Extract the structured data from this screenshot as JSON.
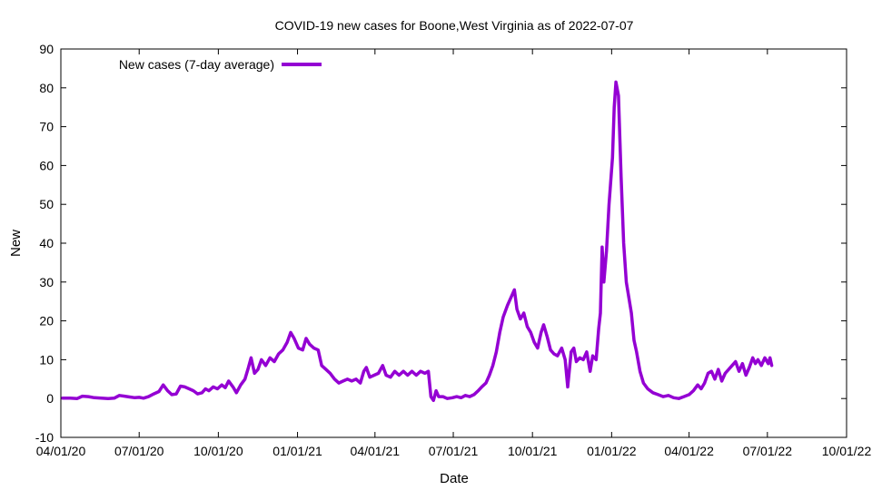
{
  "chart_data": {
    "type": "line",
    "title": "COVID-19 new cases for Boone,West Virginia as of 2022-07-07",
    "xlabel": "Date",
    "ylabel": "New",
    "xlim": [
      "2020-04-01",
      "2022-10-01"
    ],
    "ylim": [
      -10,
      90
    ],
    "xticks": [
      "04/01/20",
      "07/01/20",
      "10/01/20",
      "01/01/21",
      "04/01/21",
      "07/01/21",
      "10/01/21",
      "01/01/22",
      "04/01/22",
      "07/01/22",
      "10/01/22"
    ],
    "xtick_dates": [
      "2020-04-01",
      "2020-07-01",
      "2020-10-01",
      "2021-01-01",
      "2021-04-01",
      "2021-07-01",
      "2021-10-01",
      "2022-01-01",
      "2022-04-01",
      "2022-07-01",
      "2022-10-01"
    ],
    "yticks": [
      -10,
      0,
      10,
      20,
      30,
      40,
      50,
      60,
      70,
      80,
      90
    ],
    "grid": false,
    "legend_position": "top-left",
    "series": [
      {
        "name": "New cases (7-day average)",
        "color": "#9400d3",
        "points": [
          [
            "2020-04-03",
            0.1
          ],
          [
            "2020-04-12",
            0.1
          ],
          [
            "2020-04-20",
            0.0
          ],
          [
            "2020-04-26",
            0.6
          ],
          [
            "2020-05-03",
            0.5
          ],
          [
            "2020-05-10",
            0.2
          ],
          [
            "2020-05-18",
            0.1
          ],
          [
            "2020-05-26",
            0.0
          ],
          [
            "2020-06-02",
            0.1
          ],
          [
            "2020-06-08",
            0.8
          ],
          [
            "2020-06-14",
            0.6
          ],
          [
            "2020-06-20",
            0.4
          ],
          [
            "2020-06-26",
            0.2
          ],
          [
            "2020-07-01",
            0.3
          ],
          [
            "2020-07-06",
            0.1
          ],
          [
            "2020-07-12",
            0.5
          ],
          [
            "2020-07-18",
            1.2
          ],
          [
            "2020-07-24",
            1.8
          ],
          [
            "2020-07-29",
            3.5
          ],
          [
            "2020-08-03",
            2.0
          ],
          [
            "2020-08-08",
            1.0
          ],
          [
            "2020-08-13",
            1.2
          ],
          [
            "2020-08-18",
            3.2
          ],
          [
            "2020-08-23",
            3.0
          ],
          [
            "2020-08-28",
            2.5
          ],
          [
            "2020-09-02",
            2.0
          ],
          [
            "2020-09-07",
            1.2
          ],
          [
            "2020-09-12",
            1.5
          ],
          [
            "2020-09-16",
            2.5
          ],
          [
            "2020-09-20",
            2.0
          ],
          [
            "2020-09-25",
            3.0
          ],
          [
            "2020-09-30",
            2.5
          ],
          [
            "2020-10-05",
            3.5
          ],
          [
            "2020-10-09",
            2.8
          ],
          [
            "2020-10-13",
            4.5
          ],
          [
            "2020-10-18",
            3.0
          ],
          [
            "2020-10-22",
            1.5
          ],
          [
            "2020-10-27",
            3.5
          ],
          [
            "2020-11-01",
            5.0
          ],
          [
            "2020-11-05",
            8.0
          ],
          [
            "2020-11-08",
            10.5
          ],
          [
            "2020-11-12",
            6.5
          ],
          [
            "2020-11-16",
            7.5
          ],
          [
            "2020-11-20",
            10.0
          ],
          [
            "2020-11-25",
            8.5
          ],
          [
            "2020-11-30",
            10.5
          ],
          [
            "2020-12-05",
            9.5
          ],
          [
            "2020-12-10",
            11.5
          ],
          [
            "2020-12-15",
            12.5
          ],
          [
            "2020-12-20",
            14.5
          ],
          [
            "2020-12-24",
            17.0
          ],
          [
            "2020-12-28",
            15.5
          ],
          [
            "2021-01-02",
            13.0
          ],
          [
            "2021-01-07",
            12.5
          ],
          [
            "2021-01-11",
            15.5
          ],
          [
            "2021-01-15",
            14.0
          ],
          [
            "2021-01-20",
            13.0
          ],
          [
            "2021-01-25",
            12.5
          ],
          [
            "2021-01-29",
            8.5
          ],
          [
            "2021-02-03",
            7.5
          ],
          [
            "2021-02-08",
            6.5
          ],
          [
            "2021-02-13",
            5.0
          ],
          [
            "2021-02-18",
            4.0
          ],
          [
            "2021-02-23",
            4.5
          ],
          [
            "2021-02-28",
            5.0
          ],
          [
            "2021-03-05",
            4.5
          ],
          [
            "2021-03-10",
            5.0
          ],
          [
            "2021-03-15",
            4.0
          ],
          [
            "2021-03-19",
            7.0
          ],
          [
            "2021-03-22",
            8.0
          ],
          [
            "2021-03-26",
            5.5
          ],
          [
            "2021-03-31",
            6.0
          ],
          [
            "2021-04-05",
            6.5
          ],
          [
            "2021-04-10",
            8.5
          ],
          [
            "2021-04-14",
            6.0
          ],
          [
            "2021-04-19",
            5.5
          ],
          [
            "2021-04-24",
            7.0
          ],
          [
            "2021-04-29",
            6.0
          ],
          [
            "2021-05-04",
            7.0
          ],
          [
            "2021-05-09",
            6.0
          ],
          [
            "2021-05-14",
            7.0
          ],
          [
            "2021-05-19",
            6.0
          ],
          [
            "2021-05-24",
            7.0
          ],
          [
            "2021-05-29",
            6.5
          ],
          [
            "2021-06-02",
            7.0
          ],
          [
            "2021-06-05",
            0.5
          ],
          [
            "2021-06-08",
            -0.5
          ],
          [
            "2021-06-11",
            2.0
          ],
          [
            "2021-06-14",
            0.5
          ],
          [
            "2021-06-19",
            0.5
          ],
          [
            "2021-06-24",
            0.0
          ],
          [
            "2021-06-30",
            0.2
          ],
          [
            "2021-07-05",
            0.5
          ],
          [
            "2021-07-10",
            0.2
          ],
          [
            "2021-07-15",
            0.8
          ],
          [
            "2021-07-20",
            0.5
          ],
          [
            "2021-07-25",
            1.0
          ],
          [
            "2021-07-30",
            2.0
          ],
          [
            "2021-08-03",
            3.0
          ],
          [
            "2021-08-08",
            4.0
          ],
          [
            "2021-08-12",
            6.0
          ],
          [
            "2021-08-16",
            8.5
          ],
          [
            "2021-08-20",
            12.0
          ],
          [
            "2021-08-24",
            17.0
          ],
          [
            "2021-08-28",
            21.0
          ],
          [
            "2021-09-02",
            24.0
          ],
          [
            "2021-09-06",
            26.0
          ],
          [
            "2021-09-10",
            28.0
          ],
          [
            "2021-09-13",
            23.0
          ],
          [
            "2021-09-17",
            20.5
          ],
          [
            "2021-09-21",
            22.0
          ],
          [
            "2021-09-25",
            18.5
          ],
          [
            "2021-09-29",
            17.0
          ],
          [
            "2021-10-03",
            14.5
          ],
          [
            "2021-10-07",
            13.0
          ],
          [
            "2021-10-11",
            17.0
          ],
          [
            "2021-10-14",
            19.0
          ],
          [
            "2021-10-18",
            16.0
          ],
          [
            "2021-10-22",
            12.5
          ],
          [
            "2021-10-26",
            11.5
          ],
          [
            "2021-10-30",
            11.0
          ],
          [
            "2021-11-04",
            13.0
          ],
          [
            "2021-11-08",
            10.0
          ],
          [
            "2021-11-11",
            3.0
          ],
          [
            "2021-11-15",
            12.0
          ],
          [
            "2021-11-18",
            13.0
          ],
          [
            "2021-11-21",
            9.5
          ],
          [
            "2021-11-25",
            10.5
          ],
          [
            "2021-11-29",
            10.0
          ],
          [
            "2021-12-03",
            12.0
          ],
          [
            "2021-12-07",
            7.0
          ],
          [
            "2021-12-10",
            11.0
          ],
          [
            "2021-12-14",
            10.0
          ],
          [
            "2021-12-17",
            18.0
          ],
          [
            "2021-12-19",
            22.0
          ],
          [
            "2021-12-21",
            39.0
          ],
          [
            "2021-12-23",
            30.0
          ],
          [
            "2021-12-26",
            38.0
          ],
          [
            "2021-12-29",
            50.0
          ],
          [
            "2022-01-02",
            62.0
          ],
          [
            "2022-01-04",
            75.0
          ],
          [
            "2022-01-06",
            81.5
          ],
          [
            "2022-01-09",
            78.0
          ],
          [
            "2022-01-12",
            57.0
          ],
          [
            "2022-01-15",
            40.0
          ],
          [
            "2022-01-18",
            30.0
          ],
          [
            "2022-01-21",
            26.0
          ],
          [
            "2022-01-24",
            22.0
          ],
          [
            "2022-01-27",
            15.0
          ],
          [
            "2022-01-30",
            12.0
          ],
          [
            "2022-02-03",
            7.0
          ],
          [
            "2022-02-07",
            4.0
          ],
          [
            "2022-02-12",
            2.5
          ],
          [
            "2022-02-18",
            1.5
          ],
          [
            "2022-02-24",
            1.0
          ],
          [
            "2022-03-02",
            0.5
          ],
          [
            "2022-03-08",
            0.8
          ],
          [
            "2022-03-14",
            0.2
          ],
          [
            "2022-03-20",
            0.0
          ],
          [
            "2022-03-26",
            0.5
          ],
          [
            "2022-04-01",
            1.0
          ],
          [
            "2022-04-06",
            2.0
          ],
          [
            "2022-04-11",
            3.5
          ],
          [
            "2022-04-15",
            2.5
          ],
          [
            "2022-04-19",
            4.0
          ],
          [
            "2022-04-23",
            6.5
          ],
          [
            "2022-04-27",
            7.0
          ],
          [
            "2022-05-01",
            5.0
          ],
          [
            "2022-05-05",
            7.5
          ],
          [
            "2022-05-09",
            4.5
          ],
          [
            "2022-05-13",
            6.5
          ],
          [
            "2022-05-17",
            7.5
          ],
          [
            "2022-05-21",
            8.5
          ],
          [
            "2022-05-25",
            9.5
          ],
          [
            "2022-05-29",
            7.0
          ],
          [
            "2022-06-02",
            9.0
          ],
          [
            "2022-06-06",
            6.0
          ],
          [
            "2022-06-10",
            8.0
          ],
          [
            "2022-06-14",
            10.5
          ],
          [
            "2022-06-17",
            9.0
          ],
          [
            "2022-06-20",
            10.0
          ],
          [
            "2022-06-24",
            8.5
          ],
          [
            "2022-06-28",
            10.5
          ],
          [
            "2022-07-02",
            9.0
          ],
          [
            "2022-07-04",
            10.5
          ],
          [
            "2022-07-06",
            8.5
          ]
        ]
      }
    ]
  }
}
